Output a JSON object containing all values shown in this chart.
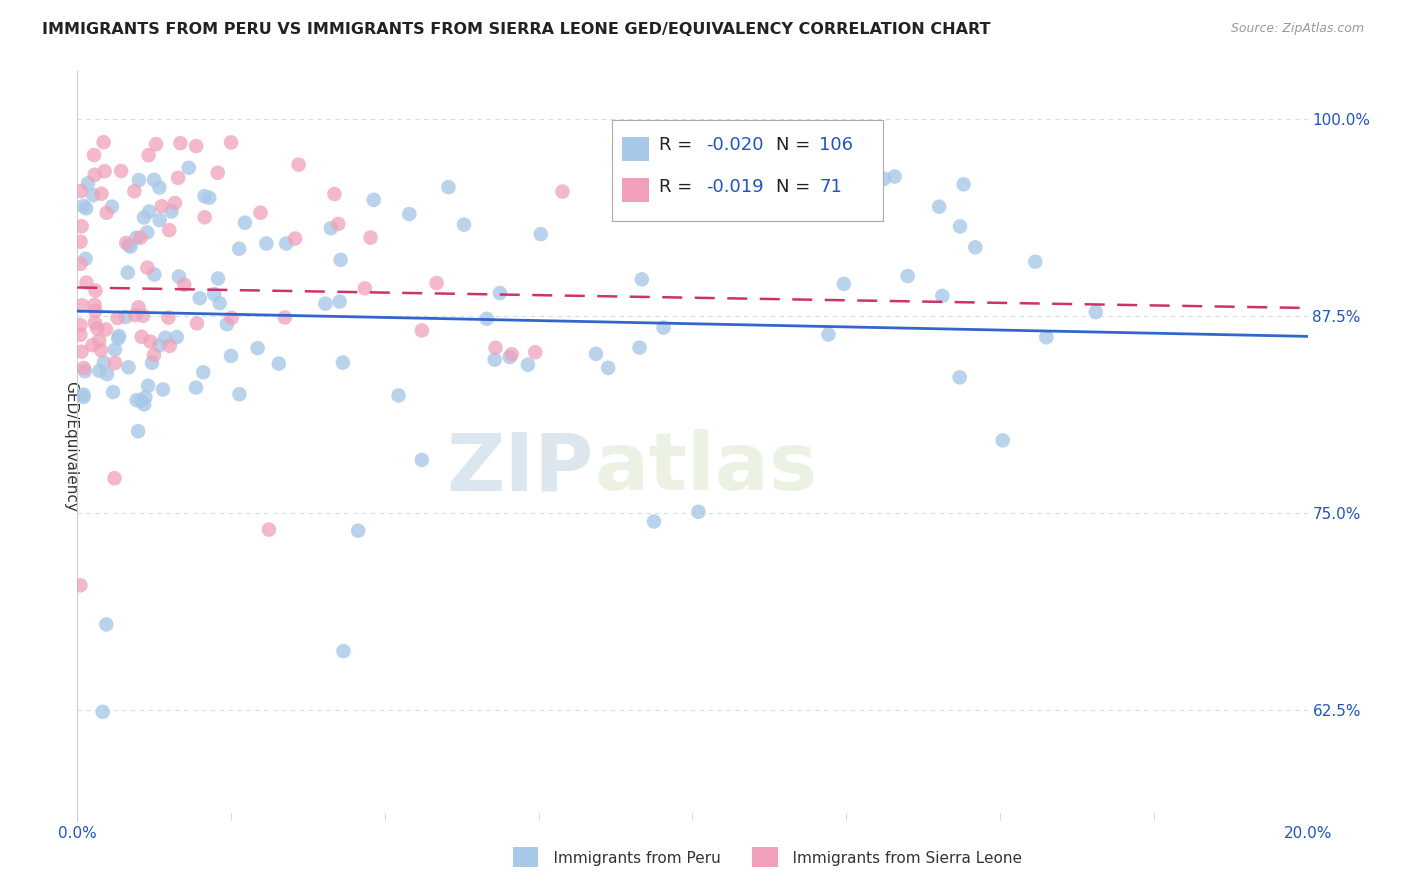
{
  "title": "IMMIGRANTS FROM PERU VS IMMIGRANTS FROM SIERRA LEONE GED/EQUIVALENCY CORRELATION CHART",
  "source": "Source: ZipAtlas.com",
  "ylabel": "GED/Equivalency",
  "ytick_vals": [
    0.625,
    0.75,
    0.875,
    1.0
  ],
  "ytick_labels": [
    "62.5%",
    "75.0%",
    "87.5%",
    "100.0%"
  ],
  "xmin": 0.0,
  "xmax": 0.2,
  "ymin": 0.555,
  "ymax": 1.03,
  "legend_peru_r": "-0.020",
  "legend_peru_n": "106",
  "legend_sl_r": "-0.019",
  "legend_sl_n": "71",
  "blue_color": "#a8c8e8",
  "pink_color": "#f0a0b8",
  "trend_blue": "#3366cc",
  "trend_pink": "#cc3366",
  "watermark_zip": "ZIP",
  "watermark_atlas": "atlas",
  "bg_color": "#ffffff",
  "grid_color": "#ccddee",
  "legend_box_color_blue": "#a8c8e8",
  "legend_box_color_pink": "#f0a0b8",
  "peru_trend_x": [
    0.0,
    0.2
  ],
  "peru_trend_y": [
    0.878,
    0.862
  ],
  "sl_trend_x": [
    0.0,
    0.2
  ],
  "sl_trend_y": [
    0.893,
    0.88
  ]
}
